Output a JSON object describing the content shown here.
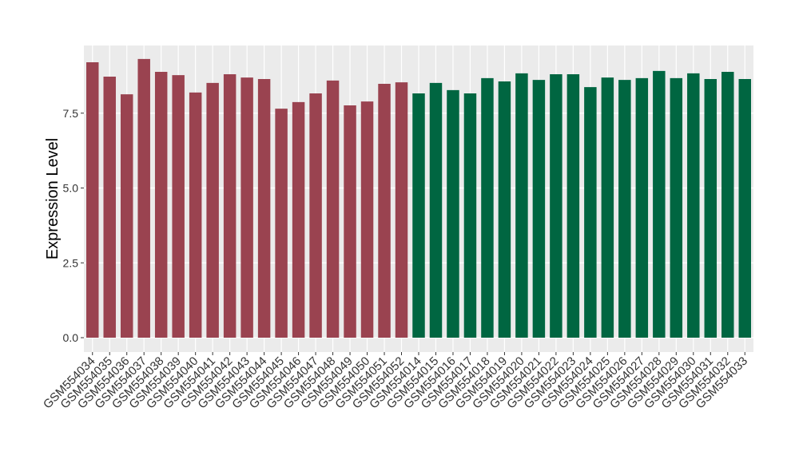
{
  "chart_data": {
    "type": "bar",
    "y_label": "Expression Level",
    "categories": [
      "GSM554034",
      "GSM554035",
      "GSM554036",
      "GSM554037",
      "GSM554038",
      "GSM554039",
      "GSM554040",
      "GSM554041",
      "GSM554042",
      "GSM554043",
      "GSM554044",
      "GSM554045",
      "GSM554046",
      "GSM554047",
      "GSM554048",
      "GSM554049",
      "GSM554050",
      "GSM554051",
      "GSM554052",
      "GSM554014",
      "GSM554015",
      "GSM554016",
      "GSM554017",
      "GSM554018",
      "GSM554019",
      "GSM554020",
      "GSM554021",
      "GSM554022",
      "GSM554023",
      "GSM554024",
      "GSM554025",
      "GSM554026",
      "GSM554027",
      "GSM554028",
      "GSM554029",
      "GSM554030",
      "GSM554031",
      "GSM554032",
      "GSM554033"
    ],
    "values": [
      9.2,
      8.72,
      8.13,
      9.31,
      8.88,
      8.77,
      8.19,
      8.51,
      8.8,
      8.69,
      8.64,
      7.65,
      7.87,
      8.16,
      8.59,
      7.76,
      7.89,
      8.48,
      8.53,
      8.16,
      8.51,
      8.27,
      8.16,
      8.67,
      8.56,
      8.83,
      8.61,
      8.8,
      8.8,
      8.37,
      8.69,
      8.61,
      8.67,
      8.91,
      8.67,
      8.83,
      8.64,
      8.88,
      8.64
    ],
    "colors": [
      "#9a4350",
      "#9a4350",
      "#9a4350",
      "#9a4350",
      "#9a4350",
      "#9a4350",
      "#9a4350",
      "#9a4350",
      "#9a4350",
      "#9a4350",
      "#9a4350",
      "#9a4350",
      "#9a4350",
      "#9a4350",
      "#9a4350",
      "#9a4350",
      "#9a4350",
      "#9a4350",
      "#9a4350",
      "#006641",
      "#006641",
      "#006641",
      "#006641",
      "#006641",
      "#006641",
      "#006641",
      "#006641",
      "#006641",
      "#006641",
      "#006641",
      "#006641",
      "#006641",
      "#006641",
      "#006641",
      "#006641",
      "#006641",
      "#006641",
      "#006641",
      "#006641"
    ],
    "ylim": [
      -0.48,
      9.76
    ],
    "yticks": [
      {
        "value": 0,
        "label": "0.0"
      },
      2.5,
      {
        "value": 5,
        "label": "5.0"
      },
      7.5
    ],
    "grid": true
  }
}
